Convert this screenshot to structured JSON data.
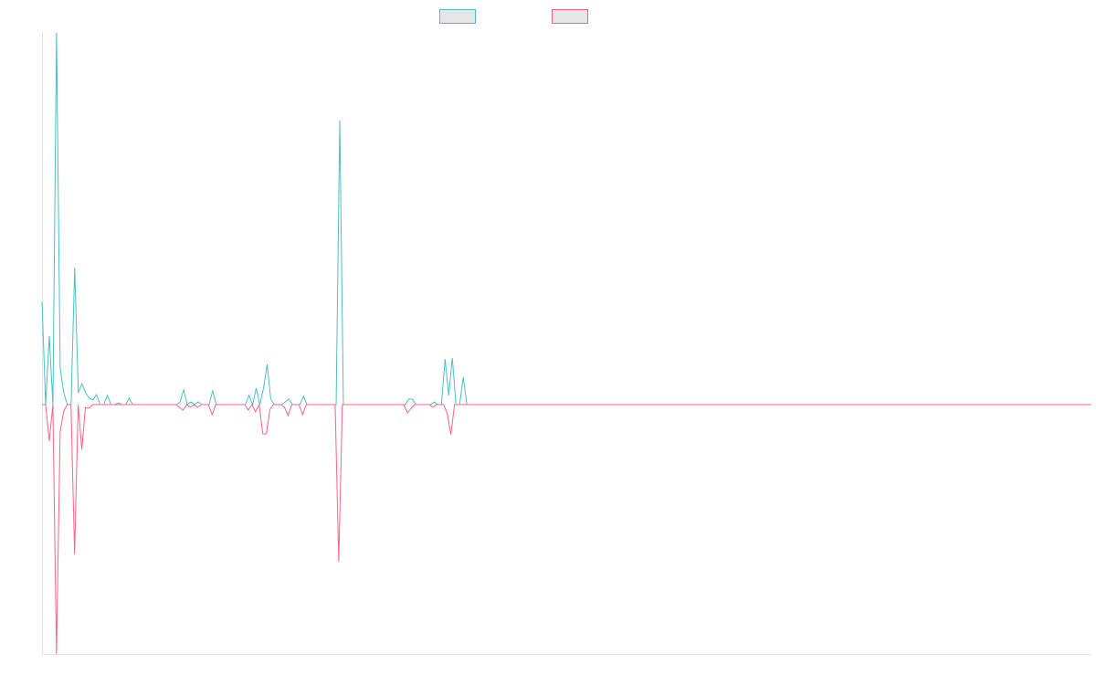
{
  "chart_data": {
    "type": "line",
    "legend": "top",
    "grid": false,
    "ylim": [
      -273,
      407
    ],
    "series": [
      {
        "color": "#4bc0c0",
        "values": [
          113,
          0,
          75,
          0,
          407,
          40,
          13,
          0,
          0,
          150,
          13,
          23,
          13,
          7,
          5,
          11,
          0,
          0,
          10,
          0,
          0,
          2,
          0,
          0,
          7,
          0,
          0,
          0,
          0,
          0,
          0,
          0,
          0,
          0,
          0,
          0,
          0,
          0,
          3,
          16,
          0,
          3,
          0,
          3,
          0,
          0,
          0,
          15,
          0,
          0,
          0,
          0,
          0,
          0,
          0,
          0,
          0,
          10,
          0,
          18,
          0,
          18,
          44,
          6,
          0,
          0,
          0,
          3,
          6,
          0,
          0,
          0,
          9,
          0,
          0,
          0,
          0,
          0,
          0,
          0,
          0,
          0,
          311,
          0,
          0,
          0,
          0,
          0,
          0,
          0,
          0,
          0,
          0,
          0,
          0,
          0,
          0,
          0,
          0,
          0,
          0,
          6,
          6,
          0,
          0,
          0,
          0,
          0,
          3,
          0,
          0,
          50,
          10,
          51,
          0,
          0,
          30,
          0,
          0,
          0,
          0,
          0,
          0,
          0,
          0,
          0,
          0,
          0,
          0,
          0,
          0,
          0,
          0,
          0,
          0,
          0,
          0,
          0,
          0,
          0,
          0,
          0,
          0,
          0,
          0,
          0,
          0,
          0,
          0,
          0,
          0,
          0,
          0,
          0,
          0,
          0,
          0,
          0,
          0,
          0,
          0,
          0,
          0,
          0,
          0,
          0,
          0,
          0,
          0,
          0,
          0,
          0,
          0,
          0,
          0,
          0,
          0,
          0,
          0,
          0,
          0,
          0,
          0,
          0,
          0,
          0,
          0,
          0,
          0,
          0,
          0,
          0,
          0,
          0,
          0,
          0,
          0,
          0,
          0,
          0,
          0,
          0,
          0,
          0,
          0,
          0,
          0,
          0,
          0,
          0,
          0,
          0,
          0,
          0,
          0,
          0,
          0,
          0,
          0,
          0,
          0,
          0,
          0,
          0,
          0,
          0,
          0,
          0,
          0,
          0,
          0,
          0,
          0,
          0,
          0,
          0,
          0,
          0,
          0,
          0,
          0,
          0,
          0,
          0,
          0,
          0,
          0,
          0,
          0,
          0,
          0,
          0,
          0,
          0,
          0,
          0,
          0,
          0,
          0,
          0,
          0,
          0,
          0,
          0,
          0,
          0,
          0,
          0,
          0,
          0,
          0,
          0,
          0,
          0,
          0,
          0,
          0,
          0,
          0,
          0,
          0,
          0,
          0,
          0,
          0,
          0,
          0,
          0,
          0,
          0
        ]
      },
      {
        "color": "#ff6384",
        "values": [
          0,
          0,
          -40,
          0,
          -273,
          -30,
          -7,
          0,
          0,
          -164,
          0,
          -49,
          -3,
          -4,
          0,
          0,
          0,
          0,
          0,
          0,
          0,
          0,
          0,
          0,
          0,
          0,
          0,
          0,
          0,
          0,
          0,
          0,
          0,
          0,
          0,
          0,
          0,
          0,
          -3,
          -6,
          0,
          -3,
          0,
          -3,
          0,
          0,
          0,
          -11,
          0,
          0,
          0,
          0,
          0,
          0,
          0,
          0,
          0,
          -6,
          0,
          -8,
          0,
          -32,
          -32,
          -5,
          0,
          0,
          0,
          -3,
          -12,
          0,
          0,
          0,
          -11,
          0,
          0,
          0,
          0,
          0,
          0,
          0,
          0,
          0,
          -172,
          0,
          0,
          0,
          0,
          0,
          0,
          0,
          0,
          0,
          0,
          0,
          0,
          0,
          0,
          0,
          0,
          0,
          0,
          -9,
          -4,
          0,
          0,
          0,
          0,
          0,
          -3,
          0,
          0,
          0,
          -10,
          -33,
          0,
          0,
          0,
          0,
          0,
          0,
          0,
          0,
          0,
          0,
          0,
          0,
          0,
          0,
          0,
          0,
          0,
          0,
          0,
          0,
          0,
          0,
          0,
          0,
          0,
          0,
          0,
          0,
          0,
          0,
          0,
          0,
          0,
          0,
          0,
          0,
          0,
          0,
          0,
          0,
          0,
          0,
          0,
          0,
          0,
          0,
          0,
          0,
          0,
          0,
          0,
          0,
          0,
          0,
          0,
          0,
          0,
          0,
          0,
          0,
          0,
          0,
          0,
          0,
          0,
          0,
          0,
          0,
          0,
          0,
          0,
          0,
          0,
          0,
          0,
          0,
          0,
          0,
          0,
          0,
          0,
          0,
          0,
          0,
          0,
          0,
          0,
          0,
          0,
          0,
          0,
          0,
          0,
          0,
          0,
          0,
          0,
          0,
          0,
          0,
          0,
          0,
          0,
          0,
          0,
          0,
          0,
          0,
          0,
          0,
          0,
          0,
          0,
          0,
          0,
          0,
          0,
          0,
          0,
          0,
          0,
          0,
          0,
          0,
          0,
          0,
          0,
          0,
          0,
          0,
          0,
          0,
          0,
          0,
          0,
          0,
          0,
          0,
          0,
          0,
          0,
          0,
          0,
          0,
          0,
          0,
          0,
          0,
          0,
          0,
          0,
          0,
          0,
          0,
          0,
          0,
          0,
          0,
          0,
          0,
          0,
          0,
          0,
          0,
          0,
          0,
          0,
          0,
          0,
          0,
          0,
          0,
          0,
          0,
          0,
          0,
          0
        ]
      }
    ]
  }
}
